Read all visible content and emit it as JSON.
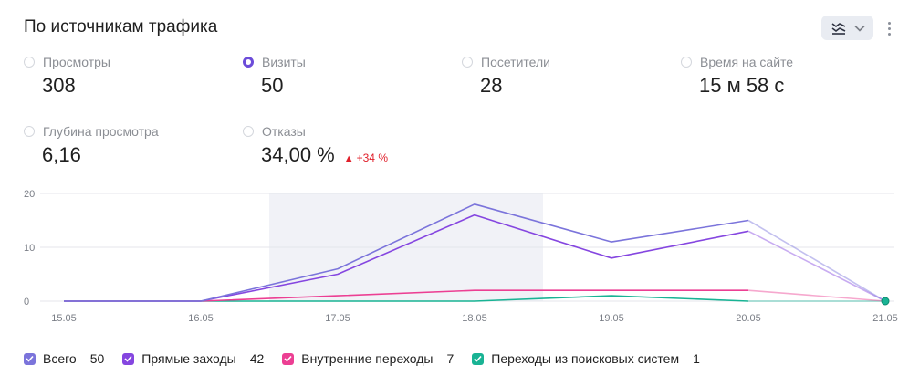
{
  "title": "По источникам трафика",
  "controls": {
    "chart_type_icon": "chart-lines-icon",
    "dropdown_icon": "chevron-down-icon",
    "more_icon": "more-vertical-icon"
  },
  "metrics": [
    {
      "label": "Просмотры",
      "value": "308",
      "selected": false
    },
    {
      "label": "Визиты",
      "value": "50",
      "selected": true
    },
    {
      "label": "Посетители",
      "value": "28",
      "selected": false
    },
    {
      "label": "Время на сайте",
      "value": "15 м 58 с",
      "selected": false
    },
    {
      "label": "Глубина просмотра",
      "value": "6,16",
      "selected": false
    },
    {
      "label": "Отказы",
      "value": "34,00 %",
      "selected": false,
      "delta": "+34 %",
      "delta_direction": "up"
    }
  ],
  "chart_data": {
    "type": "line",
    "x": [
      "15.05",
      "16.05",
      "17.05",
      "18.05",
      "19.05",
      "20.05",
      "21.05"
    ],
    "yticks": [
      0,
      10,
      20
    ],
    "ylim": [
      0,
      20
    ],
    "highlight_range": [
      "16.05",
      "18.05"
    ],
    "grid": true,
    "legend_position": "bottom",
    "series": [
      {
        "name": "Всего",
        "total": "50",
        "color": "#7b74db",
        "values": [
          0,
          0,
          6,
          18,
          11,
          15,
          0
        ]
      },
      {
        "name": "Прямые заходы",
        "total": "42",
        "color": "#8546e0",
        "values": [
          0,
          0,
          5,
          16,
          8,
          13,
          0
        ]
      },
      {
        "name": "Внутренние переходы",
        "total": "7",
        "color": "#ec3f93",
        "values": [
          0,
          0,
          1,
          2,
          2,
          2,
          0
        ]
      },
      {
        "name": "Переходы из поисковых систем",
        "total": "1",
        "color": "#19b394",
        "values": [
          0,
          0,
          0,
          0,
          1,
          0,
          0
        ]
      }
    ]
  }
}
